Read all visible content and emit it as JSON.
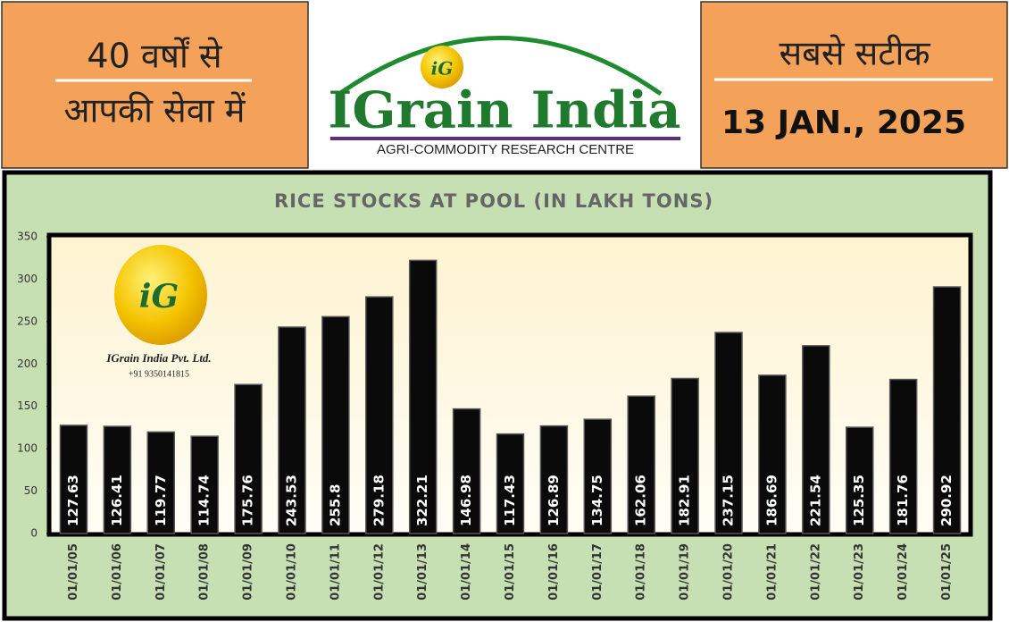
{
  "header": {
    "left_line1": "40 वर्षों से",
    "left_line2": "आपकी सेवा में",
    "logo_mark": "iG",
    "brand": "IGrain India",
    "tagline": "AGRI-COMMODITY RESEARCH CENTRE",
    "right_line1": "सबसे सटीक",
    "date": "13 JAN., 2025"
  },
  "watermark": {
    "mark": "iG",
    "company": "IGrain India Pvt. Ltd.",
    "phone": "+91 9350141815"
  },
  "chart_data": {
    "type": "bar",
    "title": "RICE STOCKS AT POOL (IN LAKH TONS)",
    "categories": [
      "01/01/05",
      "01/01/06",
      "01/01/07",
      "01/01/08",
      "01/01/09",
      "01/01/10",
      "01/01/11",
      "01/01/12",
      "01/01/13",
      "01/01/14",
      "01/01/15",
      "01/01/16",
      "01/01/17",
      "01/01/18",
      "01/01/19",
      "01/01/20",
      "01/01/21",
      "01/01/22",
      "01/01/23",
      "01/01/24",
      "01/01/25"
    ],
    "values": [
      127.63,
      126.41,
      119.77,
      114.74,
      175.76,
      243.53,
      255.8,
      279.18,
      322.21,
      146.98,
      117.43,
      126.89,
      134.75,
      162.06,
      182.91,
      237.15,
      186.69,
      221.54,
      125.35,
      181.76,
      290.92
    ],
    "color": "#0a0a0a",
    "ylim": [
      0,
      350
    ],
    "yticks": [
      0,
      50,
      100,
      150,
      200,
      250,
      300,
      350
    ]
  }
}
